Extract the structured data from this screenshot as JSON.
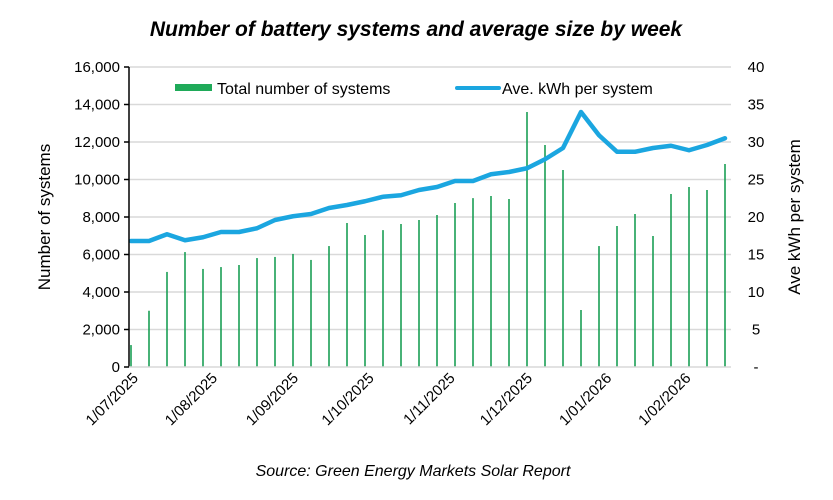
{
  "chart_data": {
    "type": "bar+line",
    "title": "Number of battery systems and average size by week",
    "source": "Source: Green Energy Markets Solar Report",
    "ylabel": "Number of systems",
    "y2label": "Ave kWh per system",
    "ylim": [
      0,
      16000
    ],
    "y2lim": [
      0,
      40
    ],
    "yticks": [
      "0",
      "2,000",
      "4,000",
      "6,000",
      "8,000",
      "10,000",
      "12,000",
      "14,000",
      "16,000"
    ],
    "yticks_values": [
      0,
      2000,
      4000,
      6000,
      8000,
      10000,
      12000,
      14000,
      16000
    ],
    "y2ticks": [
      "-",
      "5",
      "10",
      "15",
      "20",
      "25",
      "30",
      "35",
      "40"
    ],
    "y2ticks_values": [
      0,
      5,
      10,
      15,
      20,
      25,
      30,
      35,
      40
    ],
    "grid": true,
    "legend_position": "top",
    "xtick_labels": [
      {
        "label": "1/07/2025",
        "index": 0
      },
      {
        "label": "1/08/2025",
        "index": 4.4
      },
      {
        "label": "1/09/2025",
        "index": 8.9
      },
      {
        "label": "1/10/2025",
        "index": 13.1
      },
      {
        "label": "1/11/2025",
        "index": 17.6
      },
      {
        "label": "1/12/2025",
        "index": 21.9
      },
      {
        "label": "1/01/2026",
        "index": 26.3
      },
      {
        "label": "1/02/2026",
        "index": 30.7
      }
    ],
    "week_count": 34,
    "series": [
      {
        "name": "Total number of systems",
        "kind": "bar",
        "axis": "left",
        "color": "#1a9e55",
        "legend_color": "#1faa59",
        "values": [
          1170,
          3000,
          5070,
          6130,
          5230,
          5330,
          5440,
          5810,
          5870,
          6030,
          5710,
          6450,
          7680,
          7040,
          7300,
          7630,
          7840,
          8110,
          8750,
          9010,
          9120,
          8960,
          13600,
          11840,
          10510,
          3040,
          6450,
          7520,
          8160,
          6990,
          9230,
          9600,
          9440,
          10830
        ]
      },
      {
        "name": "Ave. kWh per system",
        "kind": "line",
        "axis": "right",
        "color": "#1ba6e0",
        "values": [
          16.8,
          16.8,
          17.7,
          16.9,
          17.3,
          18.0,
          18.0,
          18.5,
          19.6,
          20.1,
          20.4,
          21.2,
          21.6,
          22.1,
          22.7,
          22.9,
          23.6,
          24.0,
          24.8,
          24.8,
          25.7,
          26.0,
          26.5,
          27.7,
          29.2,
          34.0,
          30.9,
          28.7,
          28.7,
          29.2,
          29.5,
          28.9,
          29.6,
          30.5
        ]
      }
    ]
  }
}
